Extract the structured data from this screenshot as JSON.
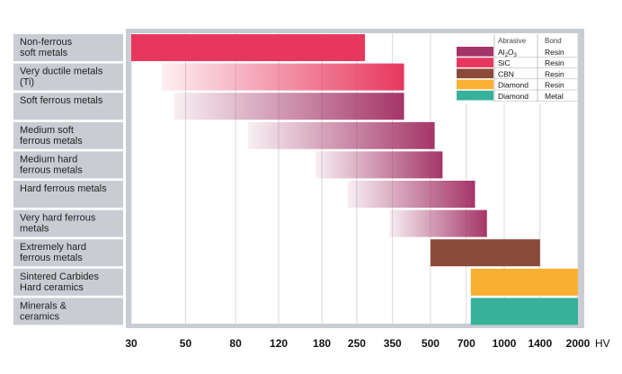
{
  "chart_data": {
    "type": "bar",
    "orientation": "horizontal",
    "scale": "log",
    "x_unit": "HV",
    "x_ticks": [
      30,
      50,
      80,
      120,
      180,
      250,
      350,
      500,
      700,
      1000,
      1400,
      2000
    ],
    "xlim": [
      30,
      2000
    ],
    "categories": [
      [
        "Non-ferrous",
        "soft metals"
      ],
      [
        "Very ductile metals",
        "(Ti)"
      ],
      [
        "Soft ferrous metals"
      ],
      [
        "Medium soft",
        "ferrous metals"
      ],
      [
        "Medium hard",
        "ferrous metals"
      ],
      [
        "Hard ferrous metals"
      ],
      [
        "Very hard ferrous",
        "metals"
      ],
      [
        "Extremely hard",
        "ferrous metals"
      ],
      [
        "Sintered Carbides",
        "Hard ceramics"
      ],
      [
        "Minerals &",
        "ceramics"
      ]
    ],
    "ranges": [
      {
        "min": 30,
        "max": 270,
        "abrasive": "SiC",
        "gradient": false
      },
      {
        "min": 40,
        "max": 390,
        "abrasive": "SiC",
        "gradient": true
      },
      {
        "min": 45,
        "max": 390,
        "abrasive": "Al2O3",
        "gradient": true
      },
      {
        "min": 90,
        "max": 520,
        "abrasive": "Al2O3",
        "gradient": true
      },
      {
        "min": 170,
        "max": 560,
        "abrasive": "Al2O3",
        "gradient": true
      },
      {
        "min": 230,
        "max": 760,
        "abrasive": "Al2O3",
        "gradient": true
      },
      {
        "min": 340,
        "max": 850,
        "abrasive": "Al2O3",
        "gradient": true
      },
      {
        "min": 500,
        "max": 1400,
        "abrasive": "CBN",
        "gradient": false
      },
      {
        "min": 730,
        "max": 2000,
        "abrasive": "Diamond Resin",
        "gradient": false
      },
      {
        "min": 730,
        "max": 2000,
        "abrasive": "Diamond Metal",
        "gradient": false
      }
    ],
    "legend": {
      "headers": [
        "Abrasive",
        "Bond"
      ],
      "entries": [
        {
          "key": "Al2O3",
          "abrasive_base": "Al",
          "sub1": "2",
          "mid": "O",
          "sub2": "3",
          "bond": "Resin",
          "color": "#a43568"
        },
        {
          "key": "SiC",
          "abrasive": "SiC",
          "bond": "Resin",
          "color": "#e8375e"
        },
        {
          "key": "CBN",
          "abrasive": "CBN",
          "bond": "Resin",
          "color": "#8c4a3a"
        },
        {
          "key": "Diamond Resin",
          "abrasive": "Diamond",
          "bond": "Resin",
          "color": "#fbb034"
        },
        {
          "key": "Diamond Metal",
          "abrasive": "Diamond",
          "bond": "Metal",
          "color": "#35b299"
        }
      ],
      "position": "top-right"
    }
  }
}
